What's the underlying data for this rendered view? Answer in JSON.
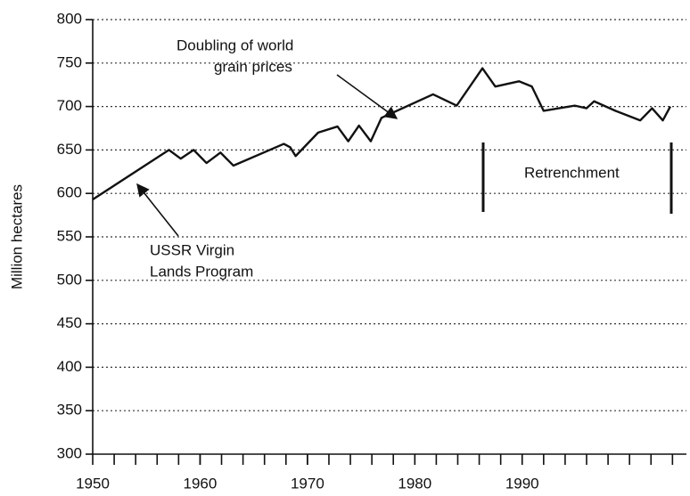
{
  "chart_data": {
    "type": "line",
    "y_label": "Million hectares",
    "xlim": [
      1950,
      2005.3
    ],
    "xticks": [
      1950,
      1960,
      1970,
      1980,
      1990
    ],
    "ylim": [
      300,
      800
    ],
    "yticks": [
      300,
      350,
      400,
      450,
      500,
      550,
      600,
      650,
      700,
      750,
      800
    ],
    "grid": true,
    "series": [
      {
        "color": "#111111",
        "x": [
          1950,
          1957.1,
          1958.2,
          1959.4,
          1960.6,
          1961.9,
          1963.1,
          1967.8,
          1968.4,
          1968.9,
          1971.0,
          1972.8,
          1973.8,
          1974.8,
          1975.9,
          1976.9,
          1981.7,
          1983.9,
          1986.3,
          1987.5,
          1989.7,
          1990.9,
          1992.0,
          1994.9,
          1996.0,
          1996.7,
          1998.7,
          2001.0,
          2002.1,
          2003.1,
          2003.8
        ],
        "values": [
          593,
          650,
          640,
          650,
          635,
          647,
          632,
          657,
          653,
          643,
          670,
          677,
          660,
          678,
          660,
          687,
          714,
          701,
          744,
          723,
          729,
          723,
          695,
          701,
          698,
          706,
          695,
          684,
          698,
          684,
          700
        ]
      }
    ],
    "annotations": [
      {
        "lines": [
          "Doubling of world",
          "grain prices"
        ]
      },
      {
        "lines": [
          "USSR Virgin",
          "Lands Program"
        ]
      },
      {
        "lines": [
          "Retrenchment"
        ]
      }
    ]
  }
}
